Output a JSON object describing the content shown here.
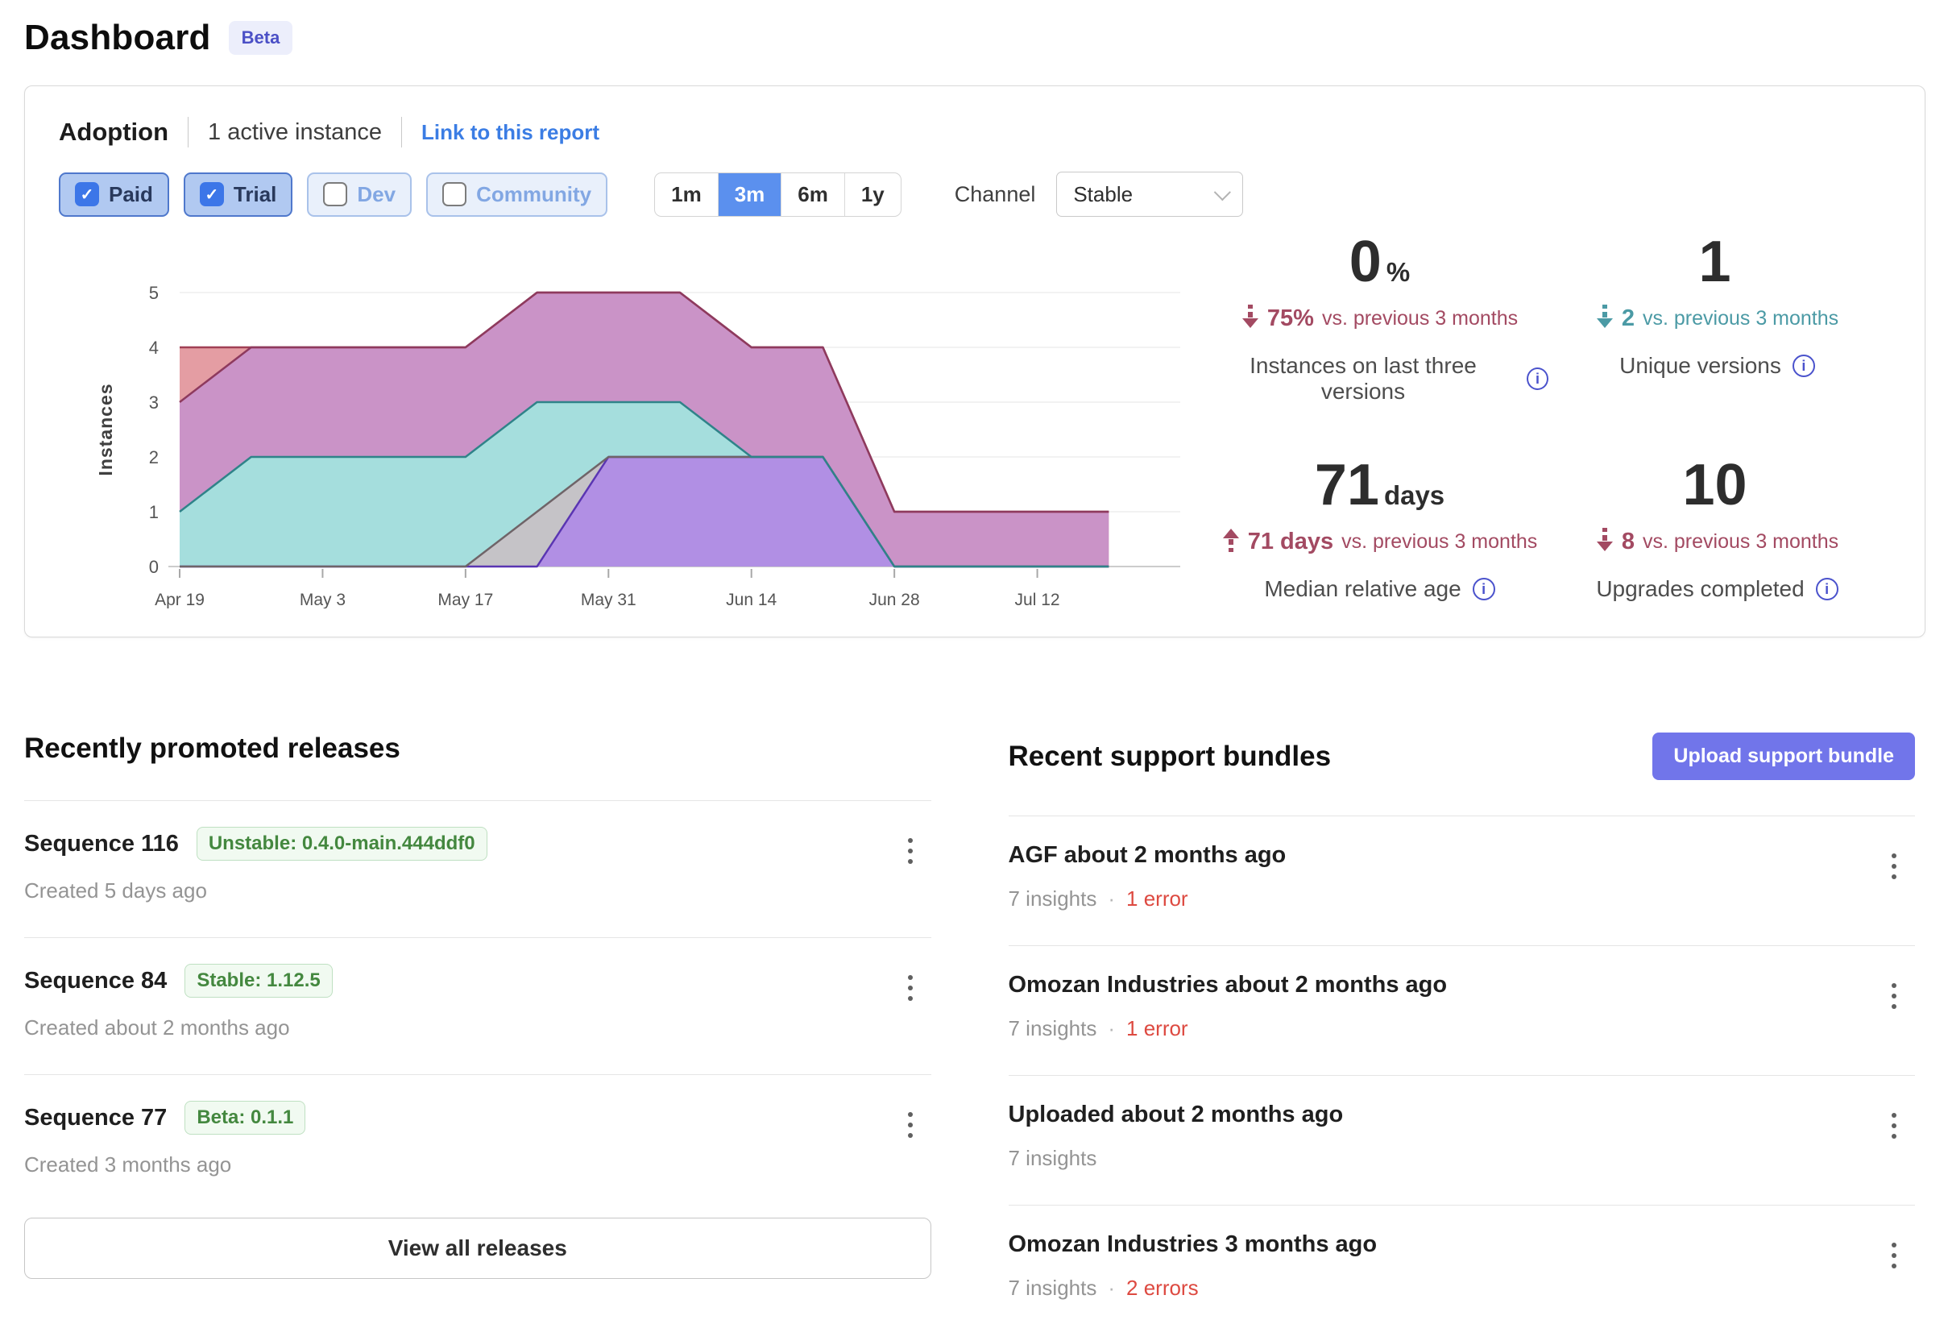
{
  "page": {
    "title": "Dashboard",
    "badge": "Beta"
  },
  "icons": {
    "check": "✓",
    "info": "i"
  },
  "adoption": {
    "title": "Adoption",
    "subtitle": "1 active instance",
    "link_label": "Link to this report",
    "filters": [
      {
        "label": "Paid",
        "checked": true
      },
      {
        "label": "Trial",
        "checked": true
      },
      {
        "label": "Dev",
        "checked": false
      },
      {
        "label": "Community",
        "checked": false
      }
    ],
    "ranges": [
      {
        "label": "1m",
        "selected": false
      },
      {
        "label": "3m",
        "selected": true
      },
      {
        "label": "6m",
        "selected": false
      },
      {
        "label": "1y",
        "selected": false
      }
    ],
    "channel_label": "Channel",
    "channel_value": "Stable",
    "stats": [
      {
        "value": "0",
        "suffix": "%",
        "direction": "down",
        "delta_color": "#a34a62",
        "delta_value": "75%",
        "delta_text": "vs. previous 3 months",
        "label": "Instances on last three versions"
      },
      {
        "value": "1",
        "suffix": "",
        "direction": "down",
        "delta_color": "#4b9aa5",
        "delta_value": "2",
        "delta_text": "vs. previous 3 months",
        "label": "Unique versions"
      },
      {
        "value": "71",
        "suffix": "days",
        "direction": "up",
        "delta_color": "#a34a62",
        "delta_value": "71 days",
        "delta_text": "vs. previous 3 months",
        "label": "Median relative age"
      },
      {
        "value": "10",
        "suffix": "",
        "direction": "down",
        "delta_color": "#a34a62",
        "delta_value": "8",
        "delta_text": "vs. previous 3 months",
        "label": "Upgrades completed"
      }
    ],
    "chart_data": {
      "type": "area",
      "title": "Instance adoption over time",
      "xlabel": "",
      "ylabel": "Instances",
      "ylim": [
        0,
        5
      ],
      "grid": "horizontal",
      "legend": "none",
      "x": [
        "Apr 19",
        "Apr 26",
        "May 3",
        "May 10",
        "May 17",
        "May 24",
        "May 31",
        "Jun 7",
        "Jun 14",
        "Jun 21",
        "Jun 28",
        "Jul 5",
        "Jul 12",
        "Jul 19"
      ],
      "x_tick_every": 2,
      "series": [
        {
          "name": "version-salmon",
          "color": "#e49da3",
          "stroke": "#a04055",
          "values": [
            4,
            4,
            4,
            4,
            4,
            5,
            5,
            5,
            4,
            4,
            1,
            1,
            1,
            1
          ]
        },
        {
          "name": "version-mauve",
          "color": "#ca93c7",
          "stroke": "#8e3a5e",
          "values": [
            3,
            4,
            4,
            4,
            4,
            5,
            5,
            5,
            4,
            4,
            1,
            1,
            1,
            1
          ]
        },
        {
          "name": "version-teal",
          "color": "#a5dedd",
          "stroke": "#2f8389",
          "values": [
            1,
            2,
            2,
            2,
            2,
            3,
            3,
            3,
            2,
            2,
            0,
            0,
            0,
            0
          ]
        },
        {
          "name": "version-gray",
          "color": "#c5c3c7",
          "stroke": "#6f6468",
          "values": [
            0,
            0,
            0,
            0,
            0,
            1,
            2,
            2,
            2,
            2,
            0,
            0,
            0,
            0
          ]
        },
        {
          "name": "version-purple",
          "color": "#b18fe4",
          "stroke": "#5a35b2",
          "values": [
            0,
            0,
            0,
            0,
            0,
            0,
            2,
            2,
            2,
            2,
            0,
            0,
            0,
            0
          ]
        }
      ],
      "stroke_draw_order": [
        0,
        1,
        4,
        3,
        2
      ]
    }
  },
  "releases": {
    "heading": "Recently promoted releases",
    "view_all_label": "View all releases",
    "items": [
      {
        "title": "Sequence 116",
        "badge": "Unstable: 0.4.0-main.444ddf0",
        "created": "Created 5 days ago"
      },
      {
        "title": "Sequence 84",
        "badge": "Stable: 1.12.5",
        "created": "Created about 2 months ago"
      },
      {
        "title": "Sequence 77",
        "badge": "Beta: 0.1.1",
        "created": "Created 3 months ago"
      }
    ]
  },
  "bundles": {
    "heading": "Recent support bundles",
    "upload_label": "Upload support bundle",
    "items": [
      {
        "title": "AGF about 2 months ago",
        "insights": "7 insights",
        "errors": "1 error"
      },
      {
        "title": "Omozan Industries about 2 months ago",
        "insights": "7 insights",
        "errors": "1 error"
      },
      {
        "title": "Uploaded about 2 months ago",
        "insights": "7 insights",
        "errors": ""
      },
      {
        "title": "Omozan Industries 3 months ago",
        "insights": "7 insights",
        "errors": "2 errors"
      }
    ]
  }
}
